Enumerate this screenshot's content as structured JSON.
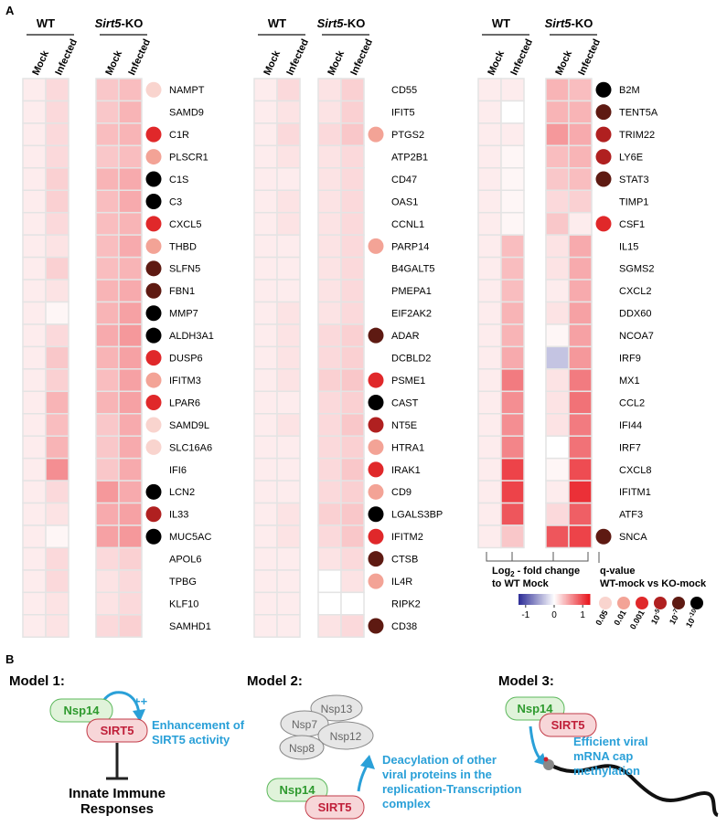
{
  "panel_a": {
    "label": "A",
    "groups": [
      {
        "name": "WT"
      },
      {
        "name": "Sirt5",
        "suffix": "-KO"
      }
    ],
    "columns": [
      "Mock",
      "Infected"
    ],
    "heatmaps": [
      {
        "genes": [
          "NAMPT",
          "SAMD9",
          "C1R",
          "PLSCR1",
          "C1S",
          "C3",
          "CXCL5",
          "THBD",
          "SLFN5",
          "FBN1",
          "MMP7",
          "ALDH3A1",
          "DUSP6",
          "IFITM3",
          "LPAR6",
          "SAMD9L",
          "SLC16A6",
          "IFI6",
          "LCN2",
          "IL33",
          "MUC5AC",
          "APOL6",
          "TPBG",
          "KLF10",
          "SAMHD1"
        ],
        "values": [
          [
            0.1,
            0.2,
            0.3,
            0.35
          ],
          [
            0.1,
            0.2,
            0.3,
            0.4
          ],
          [
            0.1,
            0.2,
            0.35,
            0.4
          ],
          [
            0.1,
            0.2,
            0.3,
            0.35
          ],
          [
            0.1,
            0.25,
            0.4,
            0.45
          ],
          [
            0.1,
            0.25,
            0.35,
            0.45
          ],
          [
            0.1,
            0.2,
            0.35,
            0.4
          ],
          [
            0.1,
            0.15,
            0.35,
            0.45
          ],
          [
            0.1,
            0.25,
            0.35,
            0.4
          ],
          [
            0.1,
            0.15,
            0.4,
            0.45
          ],
          [
            0.1,
            0.05,
            0.4,
            0.5
          ],
          [
            0.1,
            0.2,
            0.45,
            0.55
          ],
          [
            0.1,
            0.3,
            0.4,
            0.5
          ],
          [
            0.1,
            0.25,
            0.35,
            0.5
          ],
          [
            0.1,
            0.4,
            0.4,
            0.5
          ],
          [
            0.1,
            0.35,
            0.3,
            0.45
          ],
          [
            0.1,
            0.4,
            0.3,
            0.45
          ],
          [
            0.1,
            0.6,
            0.3,
            0.45
          ],
          [
            0.1,
            0.2,
            0.55,
            0.45
          ],
          [
            0.1,
            0.15,
            0.45,
            0.5
          ],
          [
            0.1,
            0.05,
            0.5,
            0.55
          ],
          [
            0.1,
            0.2,
            0.2,
            0.25
          ],
          [
            0.1,
            0.2,
            0.15,
            0.2
          ],
          [
            0.1,
            0.15,
            0.15,
            0.2
          ],
          [
            0.1,
            0.15,
            0.2,
            0.25
          ]
        ],
        "q": [
          0,
          null,
          2,
          1,
          5,
          5,
          2,
          1,
          4,
          4,
          5,
          5,
          2,
          1,
          2,
          0,
          0,
          null,
          5,
          3,
          5,
          null,
          null,
          null,
          null
        ]
      },
      {
        "genes": [
          "CD55",
          "IFIT5",
          "PTGS2",
          "ATP2B1",
          "CD47",
          "OAS1",
          "CCNL1",
          "PARP14",
          "B4GALT5",
          "PMEPA1",
          "EIF2AK2",
          "ADAR",
          "DCBLD2",
          "PSME1",
          "CAST",
          "NT5E",
          "HTRA1",
          "IRAK1",
          "CD9",
          "LGALS3BP",
          "IFITM2",
          "CTSB",
          "IL4R",
          "RIPK2",
          "CD38"
        ],
        "values": [
          [
            0.1,
            0.2,
            0.15,
            0.25
          ],
          [
            0.1,
            0.15,
            0.15,
            0.25
          ],
          [
            0.1,
            0.2,
            0.2,
            0.3
          ],
          [
            0.1,
            0.15,
            0.15,
            0.2
          ],
          [
            0.1,
            0.1,
            0.15,
            0.2
          ],
          [
            0.1,
            0.15,
            0.15,
            0.2
          ],
          [
            0.1,
            0.15,
            0.15,
            0.2
          ],
          [
            0.1,
            0.1,
            0.15,
            0.2
          ],
          [
            0.1,
            0.1,
            0.15,
            0.2
          ],
          [
            0.1,
            0.1,
            0.15,
            0.2
          ],
          [
            0.1,
            0.15,
            0.15,
            0.2
          ],
          [
            0.1,
            0.15,
            0.2,
            0.25
          ],
          [
            0.1,
            0.15,
            0.2,
            0.25
          ],
          [
            0.1,
            0.15,
            0.25,
            0.3
          ],
          [
            0.1,
            0.1,
            0.2,
            0.25
          ],
          [
            0.1,
            0.15,
            0.2,
            0.3
          ],
          [
            0.1,
            0.1,
            0.2,
            0.25
          ],
          [
            0.1,
            0.1,
            0.2,
            0.3
          ],
          [
            0.1,
            0.1,
            0.2,
            0.25
          ],
          [
            0.1,
            0.15,
            0.25,
            0.3
          ],
          [
            0.1,
            0.15,
            0.2,
            0.3
          ],
          [
            0.1,
            0.1,
            0.15,
            0.2
          ],
          [
            0.1,
            0.1,
            0,
            0.15
          ],
          [
            0.1,
            0.1,
            0,
            0
          ],
          [
            0.1,
            0.1,
            0.15,
            0.2
          ]
        ],
        "q": [
          null,
          null,
          1,
          null,
          null,
          null,
          null,
          1,
          null,
          null,
          null,
          4,
          null,
          2,
          5,
          3,
          1,
          2,
          1,
          5,
          2,
          4,
          1,
          null,
          4
        ]
      },
      {
        "genes": [
          "B2M",
          "TENT5A",
          "TRIM22",
          "LY6E",
          "STAT3",
          "TIMP1",
          "CSF1",
          "IL15",
          "SGMS2",
          "CXCL2",
          "DDX60",
          "NCOA7",
          "IRF9",
          "MX1",
          "CCL2",
          "IFI44",
          "IRF7",
          "CXCL8",
          "IFITM1",
          "ATF3",
          "SNCA"
        ],
        "values": [
          [
            0.1,
            0.1,
            0.4,
            0.35
          ],
          [
            0.1,
            0,
            0.4,
            0.4
          ],
          [
            0.1,
            0.1,
            0.55,
            0.45
          ],
          [
            0.1,
            0.05,
            0.35,
            0.4
          ],
          [
            0.1,
            0.05,
            0.3,
            0.35
          ],
          [
            0.1,
            0.05,
            0.2,
            0.25
          ],
          [
            0.1,
            0.05,
            0.3,
            0.1
          ],
          [
            0.1,
            0.35,
            0.15,
            0.45
          ],
          [
            0.1,
            0.35,
            0.15,
            0.45
          ],
          [
            0.1,
            0.35,
            0.1,
            0.45
          ],
          [
            0.1,
            0.4,
            0.15,
            0.5
          ],
          [
            0.1,
            0.4,
            0.05,
            0.5
          ],
          [
            0.1,
            0.45,
            -0.35,
            0.55
          ],
          [
            0.1,
            0.7,
            0.15,
            0.7
          ],
          [
            0.1,
            0.6,
            0.15,
            0.75
          ],
          [
            0.1,
            0.6,
            0.15,
            0.7
          ],
          [
            0.1,
            0.65,
            0,
            0.75
          ],
          [
            0.1,
            1.0,
            0.05,
            0.95
          ],
          [
            0.1,
            1.0,
            0.1,
            1.1
          ],
          [
            0.1,
            0.9,
            0.2,
            0.85
          ],
          [
            0.1,
            0.3,
            0.9,
            1.0
          ]
        ],
        "q": [
          5,
          4,
          3,
          3,
          4,
          null,
          2,
          null,
          null,
          null,
          null,
          null,
          null,
          null,
          null,
          null,
          null,
          null,
          null,
          null,
          4
        ]
      }
    ],
    "colorbar": {
      "title": "Log",
      "sub": "2",
      "title_rest": " - fold change",
      "title_line2": "to WT Mock",
      "lim": [
        -1.25,
        1.25
      ],
      "ticks": [
        -1,
        0,
        1
      ],
      "low_color": "#2b2b96",
      "high_color": "#e8141c"
    },
    "qlegend": {
      "title": "q-value",
      "subtitle": "WT-mock vs KO-mock",
      "levels": [
        {
          "label": "0.05",
          "color": "#f9d4ce"
        },
        {
          "label": "0.01",
          "color": "#f3a396"
        },
        {
          "label": "0.001",
          "color": "#e0282a"
        },
        {
          "base": "10",
          "exp": "-5",
          "color": "#b02020"
        },
        {
          "base": "10",
          "exp": "-7",
          "color": "#5e1a12"
        },
        {
          "base": "10",
          "exp": "-10",
          "color": "#000000"
        }
      ]
    }
  },
  "panel_b": {
    "label": "B",
    "model1": {
      "title": "Model 1:",
      "nsp14": "Nsp14",
      "sirt5": "SIRT5",
      "plus": "++",
      "note": [
        "Enhancement of",
        "SIRT5 activity"
      ],
      "outcome": [
        "Innate Immune",
        "Responses"
      ]
    },
    "model2": {
      "title": "Model 2:",
      "complex": [
        "Nsp13",
        "Nsp7",
        "Nsp12",
        "Nsp8"
      ],
      "nsp14": "Nsp14",
      "sirt5": "SIRT5",
      "note": [
        "Deacylation of other",
        "viral proteins in the",
        "replication-Transcription",
        "complex"
      ]
    },
    "model3": {
      "title": "Model 3:",
      "nsp14": "Nsp14",
      "sirt5": "SIRT5",
      "note": [
        "Efficient viral",
        "mRNA cap",
        "methylation"
      ]
    }
  }
}
